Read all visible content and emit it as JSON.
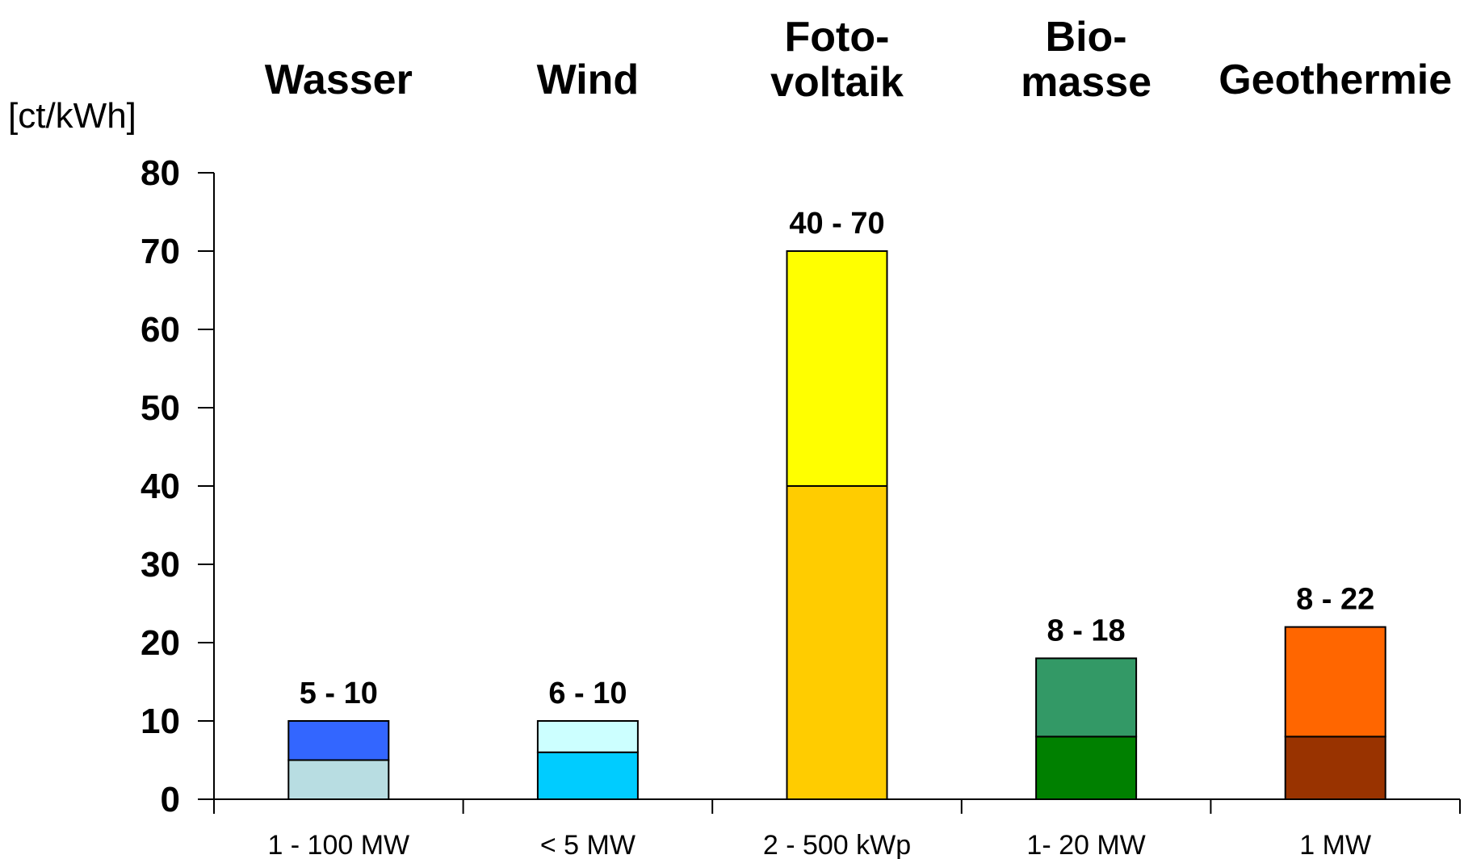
{
  "chart_data": {
    "type": "bar",
    "stacked": true,
    "ylabel": "[ct/kWh]",
    "ylim": [
      0,
      80
    ],
    "yticks": [
      "0",
      "10",
      "20",
      "30",
      "40",
      "50",
      "60",
      "70",
      "80"
    ],
    "grid": false,
    "categories": [
      {
        "title_lines": [
          "Wasser"
        ],
        "capacity": "1 - 100 MW",
        "range_label": "5 - 10",
        "low": 5,
        "high": 10,
        "color_low": "#b8dde2",
        "color_high": "#3366ff"
      },
      {
        "title_lines": [
          "Wind"
        ],
        "capacity": "< 5 MW",
        "range_label": "6 - 10",
        "low": 6,
        "high": 10,
        "color_low": "#00ccff",
        "color_high": "#ccffff"
      },
      {
        "title_lines": [
          "Foto-",
          "voltaik"
        ],
        "capacity": "2 - 500 kWp",
        "range_label": "40 - 70",
        "low": 40,
        "high": 70,
        "color_low": "#ffcc00",
        "color_high": "#ffff00"
      },
      {
        "title_lines": [
          "Bio-",
          "masse"
        ],
        "capacity": "1- 20 MW",
        "range_label": "8 - 18",
        "low": 8,
        "high": 18,
        "color_low": "#008000",
        "color_high": "#339966"
      },
      {
        "title_lines": [
          "Geothermie"
        ],
        "capacity": "1 MW",
        "range_label": "8 - 22",
        "low": 8,
        "high": 22,
        "color_low": "#993300",
        "color_high": "#ff6600"
      }
    ]
  }
}
